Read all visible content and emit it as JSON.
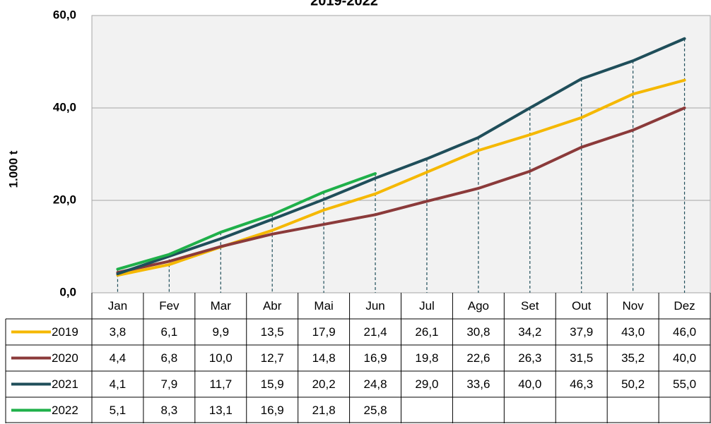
{
  "chart_data": {
    "type": "line",
    "title": "2019-2022",
    "y_label": "1.000 t",
    "categories": [
      "Jan",
      "Fev",
      "Mar",
      "Abr",
      "Mai",
      "Jun",
      "Jul",
      "Ago",
      "Set",
      "Out",
      "Nov",
      "Dez"
    ],
    "ylim": [
      0,
      60
    ],
    "yticks": [
      {
        "value": 0,
        "label": "0,0"
      },
      {
        "value": 20,
        "label": "20,0"
      },
      {
        "value": 40,
        "label": "40,0"
      },
      {
        "value": 60,
        "label": "60,0"
      }
    ],
    "grid": true,
    "series": [
      {
        "name": "2019",
        "color": "#f5b800",
        "values": [
          3.8,
          6.1,
          9.9,
          13.5,
          17.9,
          21.4,
          26.1,
          30.8,
          34.2,
          37.9,
          43.0,
          46.0
        ],
        "value_labels": [
          "3,8",
          "6,1",
          "9,9",
          "13,5",
          "17,9",
          "21,4",
          "26,1",
          "30,8",
          "34,2",
          "37,9",
          "43,0",
          "46,0"
        ]
      },
      {
        "name": "2020",
        "color": "#8b3a3a",
        "values": [
          4.4,
          6.8,
          10.0,
          12.7,
          14.8,
          16.9,
          19.8,
          22.6,
          26.3,
          31.5,
          35.2,
          40.0
        ],
        "value_labels": [
          "4,4",
          "6,8",
          "10,0",
          "12,7",
          "14,8",
          "16,9",
          "19,8",
          "22,6",
          "26,3",
          "31,5",
          "35,2",
          "40,0"
        ]
      },
      {
        "name": "2021",
        "color": "#1f4e5a",
        "values": [
          4.1,
          7.9,
          11.7,
          15.9,
          20.2,
          24.8,
          29.0,
          33.6,
          40.0,
          46.3,
          50.2,
          55.0
        ],
        "value_labels": [
          "4,1",
          "7,9",
          "11,7",
          "15,9",
          "20,2",
          "24,8",
          "29,0",
          "33,6",
          "40,0",
          "46,3",
          "50,2",
          "55,0"
        ]
      },
      {
        "name": "2022",
        "color": "#1fb04a",
        "values": [
          5.1,
          8.3,
          13.1,
          16.9,
          21.8,
          25.8,
          null,
          null,
          null,
          null,
          null,
          null
        ],
        "value_labels": [
          "5,1",
          "8,3",
          "13,1",
          "16,9",
          "21,8",
          "25,8",
          null,
          null,
          null,
          null,
          null,
          null
        ]
      }
    ]
  }
}
